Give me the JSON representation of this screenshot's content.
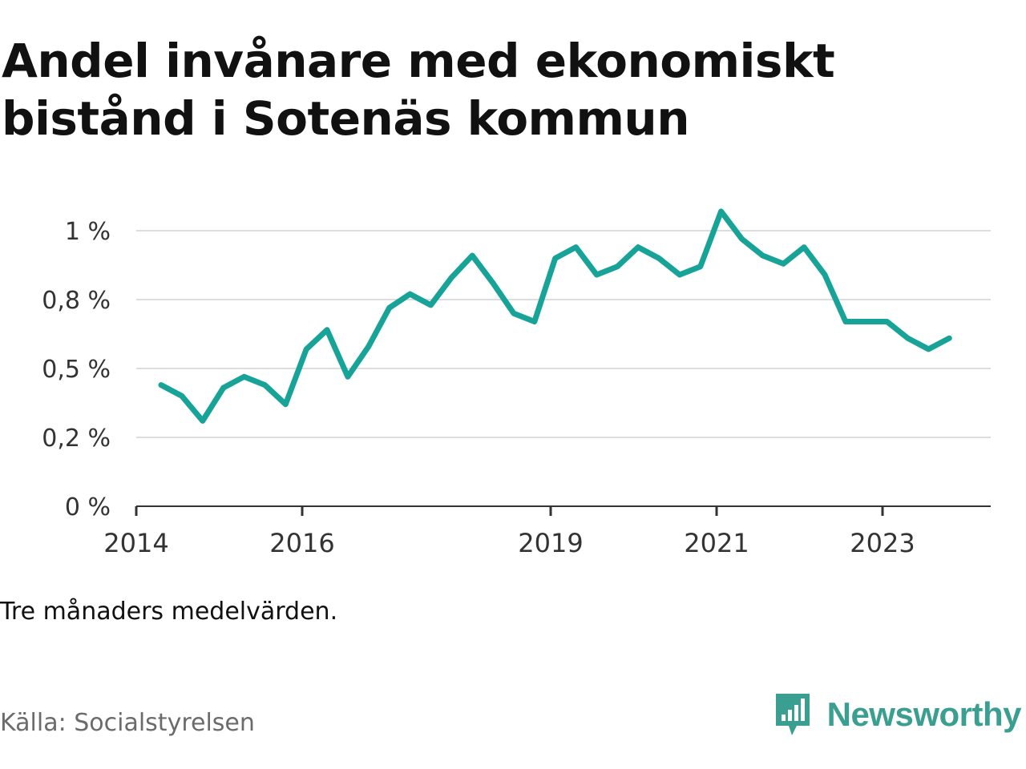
{
  "title": "Andel invånare med ekonomiskt bistånd i Sotenäs kommun",
  "note": "Tre månaders medelvärden.",
  "source": "Källa: Socialstyrelsen",
  "brand": {
    "name": "Newsworthy",
    "icon": "bar-chart-speech-bubble-icon"
  },
  "colors": {
    "line": "#17a398",
    "grid": "#dddddd",
    "axis": "#333333",
    "brand": "#3a9e91"
  },
  "chart_data": {
    "type": "line",
    "title": "Andel invånare med ekonomiskt bistånd i Sotenäs kommun",
    "xlabel": "",
    "ylabel": "",
    "x_ticks": [
      "2014",
      "2016",
      "2019",
      "2021",
      "2023"
    ],
    "x_tick_values": [
      2014.0,
      2016.0,
      2019.0,
      2021.0,
      2023.0
    ],
    "y_ticks": [
      "0 %",
      "0,2 %",
      "0,5 %",
      "0,8 %",
      "1 %"
    ],
    "y_tick_values": [
      0,
      0.25,
      0.5,
      0.75,
      1.0
    ],
    "xlim": [
      2014.0,
      2024.3
    ],
    "ylim": [
      0,
      1.0
    ],
    "grid": true,
    "series": [
      {
        "x": [
          2014.3,
          2014.55,
          2014.8,
          2015.05,
          2015.3,
          2015.55,
          2015.8,
          2016.05,
          2016.3,
          2016.55,
          2016.8,
          2017.05,
          2017.3,
          2017.55,
          2017.8,
          2018.05,
          2018.3,
          2018.55,
          2018.8,
          2019.05,
          2019.3,
          2019.55,
          2019.8,
          2020.05,
          2020.3,
          2020.55,
          2020.8,
          2021.05,
          2021.3,
          2021.55,
          2021.8,
          2022.05,
          2022.3,
          2022.55,
          2022.8,
          2023.05,
          2023.3,
          2023.55,
          2023.8
        ],
        "values": [
          0.44,
          0.4,
          0.31,
          0.43,
          0.47,
          0.44,
          0.37,
          0.57,
          0.64,
          0.47,
          0.58,
          0.72,
          0.77,
          0.73,
          0.83,
          0.91,
          0.81,
          0.7,
          0.67,
          0.9,
          0.94,
          0.84,
          0.87,
          0.94,
          0.9,
          0.84,
          0.87,
          1.07,
          0.97,
          0.91,
          0.88,
          0.94,
          0.84,
          0.67,
          0.67,
          0.67,
          0.61,
          0.57,
          0.61
        ]
      }
    ]
  }
}
